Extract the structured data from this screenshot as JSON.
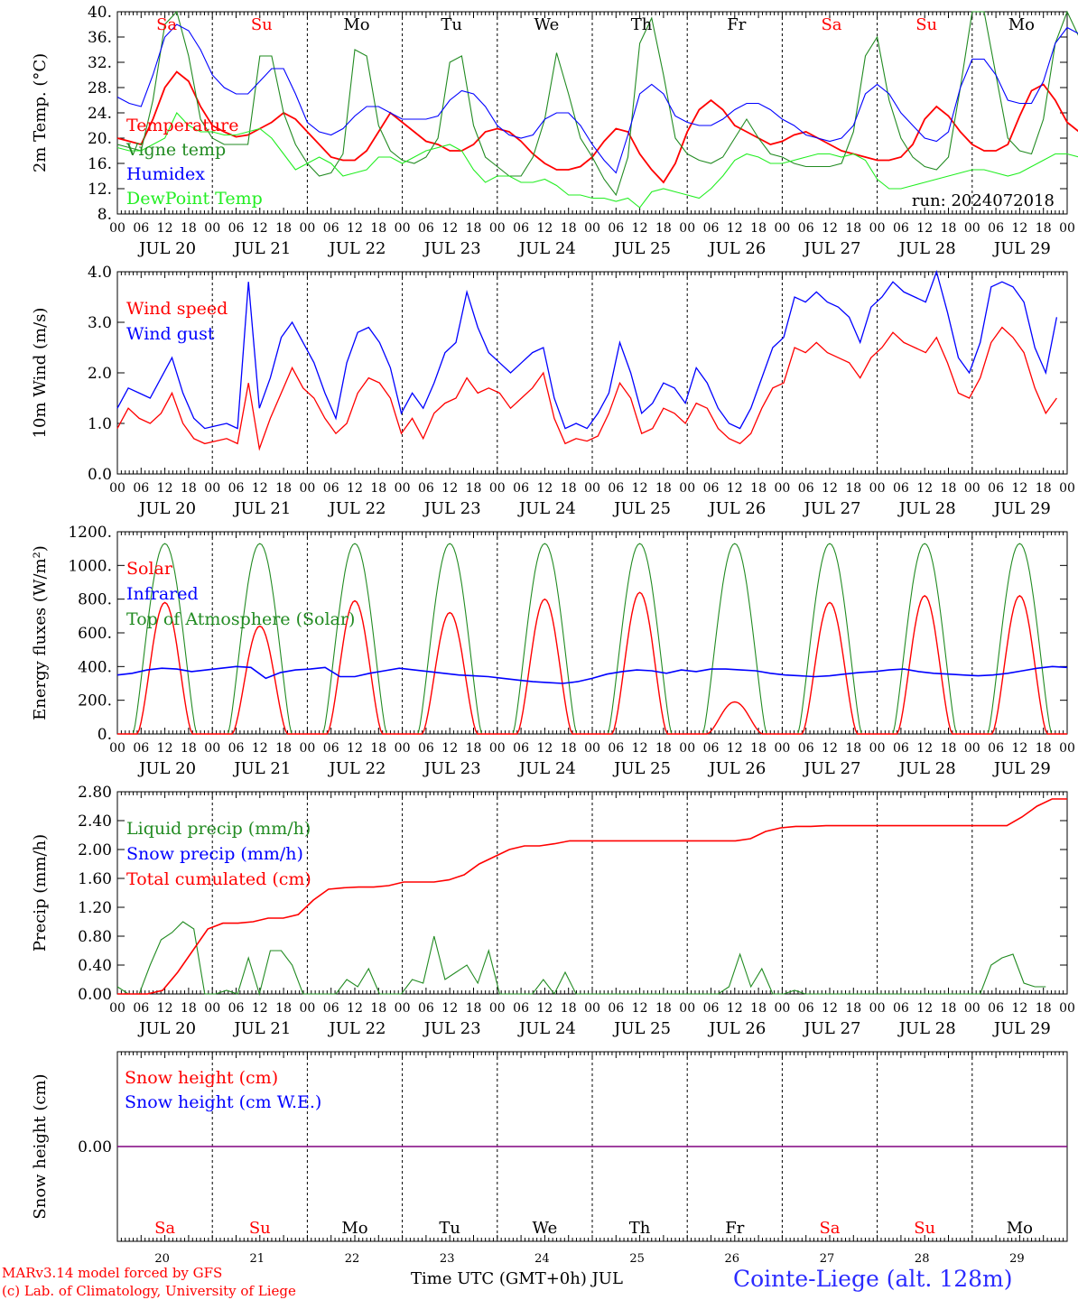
{
  "run_label": "run: 2024072018",
  "days": [
    "Sa",
    "Su",
    "Mo",
    "Tu",
    "We",
    "Th",
    "Fr",
    "Sa",
    "Su",
    "Mo"
  ],
  "day_colors": [
    "#ff0000",
    "#ff0000",
    "#000000",
    "#000000",
    "#000000",
    "#000000",
    "#000000",
    "#ff0000",
    "#ff0000",
    "#000000"
  ],
  "date_labels": [
    "JUL 20",
    "JUL 21",
    "JUL 22",
    "JUL 23",
    "JUL 24",
    "JUL 25",
    "JUL 26",
    "JUL 27",
    "JUL 28",
    "JUL 29"
  ],
  "day_numbers": [
    "20",
    "21",
    "22",
    "23",
    "24",
    "25",
    "26",
    "27",
    "28",
    "29"
  ],
  "hour_ticks": [
    "00",
    "06",
    "12",
    "18"
  ],
  "footer": {
    "model": "MARv3.14 model forced by GFS",
    "lab": "(c) Lab. of Climatology, University of Liege",
    "time_axis": "Time UTC (GMT+0h) JUL",
    "station": "Cointe-Liege (alt. 128m)"
  },
  "chart_data": [
    {
      "type": "line",
      "ylabel": "2m Temp. (°C)",
      "ylim": [
        8,
        40
      ],
      "yticks": [
        "40.",
        "36.",
        "32.",
        "28.",
        "24.",
        "20.",
        "16.",
        "12.",
        "8."
      ],
      "x": "hours since JUL 20 00 UTC, 3-hourly",
      "series": [
        {
          "name": "Temperature",
          "color": "#ff0000",
          "values": [
            20,
            19.5,
            19,
            23,
            28,
            30.5,
            29,
            25,
            22,
            21,
            20.2,
            20.5,
            21.5,
            22.5,
            24,
            23,
            21,
            19,
            17,
            16.5,
            16.5,
            18,
            21,
            24,
            22.5,
            21,
            19.5,
            19,
            18,
            18,
            19,
            21,
            21.5,
            21,
            19.5,
            17.5,
            16,
            15,
            15,
            15.5,
            17,
            19.5,
            21.5,
            21,
            17.5,
            15,
            13,
            16,
            21,
            24.5,
            26,
            24.5,
            22,
            21,
            20,
            19,
            19.5,
            20.5,
            21,
            20,
            19,
            18,
            17.5,
            17,
            16.5,
            16.5,
            17,
            19,
            23,
            25,
            23.5,
            21,
            19,
            18,
            18,
            19,
            23.5,
            27.5,
            28.5,
            26,
            22.5,
            21,
            20.5,
            22.5,
            27,
            31,
            32,
            29.5,
            25,
            23.5
          ]
        },
        {
          "name": "Vigne temp",
          "color": "#228b22",
          "values": [
            19,
            18.5,
            18,
            26,
            38,
            40,
            33,
            23,
            20,
            19,
            19,
            19,
            33,
            33,
            24,
            19,
            16,
            14,
            14.5,
            17.5,
            34,
            33,
            22,
            18,
            16.5,
            16,
            17,
            20,
            32,
            33,
            22,
            17,
            15.5,
            14,
            14,
            17,
            23,
            33.5,
            27,
            20,
            17,
            13.5,
            11,
            17,
            35,
            39,
            30,
            20,
            17.5,
            16.5,
            16,
            17,
            20,
            23,
            20,
            17.5,
            17,
            16,
            15.5,
            15.5,
            15.5,
            16,
            21,
            33,
            36,
            26,
            20,
            17,
            15.5,
            15,
            17,
            28,
            40,
            40,
            30,
            20,
            18,
            17.5,
            23,
            35,
            40,
            36,
            27,
            23,
            21.5,
            21
          ]
        },
        {
          "name": "Humidex",
          "color": "#0000ff",
          "values": [
            26.5,
            25.5,
            25,
            30,
            36,
            38,
            37,
            34,
            30,
            28,
            27,
            27,
            29,
            31,
            31,
            27,
            22.5,
            21,
            20.5,
            21.5,
            23.5,
            25,
            25,
            24,
            23,
            23,
            23,
            23.5,
            26,
            27.5,
            27,
            25,
            22,
            20.5,
            20,
            20.5,
            23,
            24,
            24,
            22,
            19,
            16.5,
            14.5,
            20.5,
            27,
            28.5,
            27,
            23.5,
            22.5,
            22,
            22,
            23,
            24.5,
            25.5,
            25.5,
            24.5,
            23,
            22,
            20.5,
            20,
            19.5,
            20,
            22,
            27,
            28.5,
            27,
            24,
            22,
            20,
            19.5,
            21,
            28,
            32.5,
            32.5,
            30,
            26,
            25.5,
            25.5,
            29,
            35,
            37.5,
            36.5,
            34,
            32,
            30.5,
            30
          ]
        },
        {
          "name": "DewPoint Temp",
          "color": "#22ee22",
          "values": [
            18.5,
            18,
            18,
            19,
            20,
            24,
            22,
            21,
            21,
            20.5,
            20.5,
            21,
            21.5,
            20,
            17.5,
            15,
            16,
            17,
            16,
            14,
            14.5,
            15,
            17,
            17,
            16,
            17,
            18,
            18.5,
            19,
            18,
            15,
            13,
            14,
            14,
            13,
            13,
            13.5,
            12.5,
            11,
            11,
            10.5,
            10.5,
            10,
            10.5,
            9,
            11.5,
            12,
            11.5,
            11,
            10.5,
            12,
            14,
            16.5,
            17.5,
            17,
            16,
            16,
            16.5,
            17,
            17.5,
            17.5,
            17,
            17.5,
            16.5,
            13.5,
            12,
            12,
            12.5,
            13,
            13.5,
            14,
            14.5,
            15,
            15,
            14.5,
            14,
            14.5,
            15.5,
            16.5,
            17.5,
            17.5,
            17,
            16.5,
            17.5,
            20.5,
            19
          ]
        }
      ]
    },
    {
      "type": "line",
      "ylabel": "10m Wind (m/s)",
      "ylim": [
        0,
        4
      ],
      "yticks": [
        "4.0",
        "3.0",
        "2.0",
        "1.0",
        "0.0"
      ],
      "x": "hours since JUL 20 00 UTC, 3-hourly",
      "series": [
        {
          "name": "Wind speed",
          "color": "#ff0000",
          "values": [
            0.9,
            1.3,
            1.1,
            1.0,
            1.2,
            1.6,
            1.0,
            0.7,
            0.6,
            0.65,
            0.7,
            0.6,
            1.8,
            0.5,
            1.1,
            1.6,
            2.1,
            1.7,
            1.5,
            1.1,
            0.8,
            1.0,
            1.6,
            1.9,
            1.8,
            1.5,
            0.8,
            1.1,
            0.7,
            1.2,
            1.4,
            1.5,
            1.9,
            1.6,
            1.7,
            1.6,
            1.3,
            1.5,
            1.7,
            2.0,
            1.1,
            0.6,
            0.7,
            0.65,
            0.75,
            1.2,
            1.8,
            1.5,
            0.8,
            0.9,
            1.3,
            1.2,
            1.0,
            1.4,
            1.3,
            0.9,
            0.7,
            0.6,
            0.8,
            1.3,
            1.7,
            1.8,
            2.5,
            2.4,
            2.6,
            2.4,
            2.3,
            2.2,
            1.9,
            2.3,
            2.5,
            2.8,
            2.6,
            2.5,
            2.4,
            2.7,
            2.2,
            1.6,
            1.5,
            1.9,
            2.6,
            2.9,
            2.7,
            2.4,
            1.7,
            1.2,
            1.5
          ]
        },
        {
          "name": "Wind gust",
          "color": "#0000ff",
          "values": [
            1.3,
            1.7,
            1.6,
            1.5,
            1.9,
            2.3,
            1.6,
            1.1,
            0.9,
            0.95,
            1.0,
            0.9,
            3.8,
            1.3,
            1.9,
            2.7,
            3.0,
            2.6,
            2.2,
            1.6,
            1.1,
            2.2,
            2.8,
            2.9,
            2.6,
            2.1,
            1.2,
            1.6,
            1.3,
            1.8,
            2.4,
            2.6,
            3.6,
            2.9,
            2.4,
            2.2,
            2.0,
            2.2,
            2.4,
            2.5,
            1.5,
            0.9,
            1.0,
            0.9,
            1.2,
            1.6,
            2.6,
            2.0,
            1.2,
            1.4,
            1.8,
            1.7,
            1.4,
            2.1,
            1.8,
            1.3,
            1.0,
            0.9,
            1.3,
            1.9,
            2.5,
            2.7,
            3.5,
            3.4,
            3.6,
            3.4,
            3.3,
            3.1,
            2.6,
            3.3,
            3.5,
            3.8,
            3.6,
            3.5,
            3.4,
            4.0,
            3.2,
            2.3,
            2.0,
            2.6,
            3.7,
            3.8,
            3.7,
            3.4,
            2.5,
            2.0,
            3.1
          ]
        }
      ]
    },
    {
      "type": "line",
      "ylabel": "Energy fluxes (W/m²)",
      "ylim": [
        0,
        1200
      ],
      "yticks": [
        "1200.",
        "1000.",
        "800.",
        "600.",
        "400.",
        "200.",
        "0."
      ],
      "x": "hours since JUL 20 00 UTC",
      "series": [
        {
          "name": "Solar",
          "color": "#ff0000",
          "day_peaks": [
            780,
            640,
            790,
            720,
            800,
            840,
            190,
            780,
            820,
            820
          ]
        },
        {
          "name": "Infrared",
          "color": "#0000ff",
          "values": [
            350,
            360,
            380,
            390,
            385,
            370,
            380,
            390,
            400,
            395,
            330,
            365,
            380,
            385,
            395,
            340,
            340,
            360,
            375,
            390,
            380,
            370,
            360,
            350,
            345,
            340,
            330,
            320,
            310,
            305,
            300,
            310,
            330,
            355,
            370,
            380,
            375,
            360,
            380,
            370,
            385,
            385,
            380,
            375,
            360,
            350,
            345,
            340,
            345,
            355,
            365,
            370,
            380,
            385,
            370,
            360,
            355,
            350,
            345,
            350,
            360,
            375,
            390,
            400,
            395
          ]
        },
        {
          "name": "Top of Atmosphere (Solar)",
          "color": "#228b22",
          "day_peak": 1130
        }
      ]
    },
    {
      "type": "line",
      "ylabel": "Precip (mm/h)",
      "ylim": [
        0,
        2.8
      ],
      "yticks": [
        "2.80",
        "2.40",
        "2.00",
        "1.60",
        "1.20",
        "0.80",
        "0.40",
        "0.00"
      ],
      "x": "hours since JUL 20 00 UTC, 3-hourly",
      "series": [
        {
          "name": "Liquid precip (mm/h)",
          "color": "#228b22",
          "values": [
            0.1,
            0,
            0,
            0.4,
            0.75,
            0.85,
            1.0,
            0.9,
            0,
            0,
            0.05,
            0,
            0.5,
            0,
            0.6,
            0.6,
            0.4,
            0,
            0,
            0,
            0,
            0.2,
            0.1,
            0.35,
            0,
            0,
            0,
            0.2,
            0.15,
            0.8,
            0.2,
            0.3,
            0.4,
            0.15,
            0.6,
            0,
            0,
            0,
            0,
            0.2,
            0,
            0.3,
            0,
            0,
            0,
            0,
            0,
            0,
            0,
            0,
            0,
            0,
            0,
            0,
            0,
            0,
            0.1,
            0.55,
            0.1,
            0.35,
            0,
            0,
            0.05,
            0,
            0,
            0,
            0,
            0,
            0,
            0,
            0,
            0,
            0,
            0,
            0,
            0,
            0,
            0,
            0,
            0,
            0.4,
            0.5,
            0.55,
            0.15,
            0.1,
            0.1
          ]
        },
        {
          "name": "Snow precip (mm/h)",
          "color": "#0000ff",
          "values": []
        },
        {
          "name": "Total cumulated (cm)",
          "color": "#ff0000",
          "values": [
            0,
            0,
            0,
            0.05,
            0.3,
            0.6,
            0.9,
            0.98,
            0.98,
            1.0,
            1.05,
            1.05,
            1.1,
            1.3,
            1.45,
            1.47,
            1.48,
            1.48,
            1.5,
            1.55,
            1.55,
            1.55,
            1.58,
            1.65,
            1.8,
            1.9,
            2.0,
            2.05,
            2.05,
            2.08,
            2.12,
            2.12,
            2.12,
            2.12,
            2.12,
            2.12,
            2.12,
            2.12,
            2.12,
            2.12,
            2.12,
            2.12,
            2.15,
            2.25,
            2.3,
            2.32,
            2.32,
            2.33,
            2.33,
            2.33,
            2.33,
            2.33,
            2.33,
            2.33,
            2.33,
            2.33,
            2.33,
            2.33,
            2.33,
            2.33,
            2.45,
            2.6,
            2.7,
            2.7
          ]
        }
      ]
    },
    {
      "type": "line",
      "ylabel": "Snow height (cm)",
      "yticks": [
        "0.00"
      ],
      "series": [
        {
          "name": "Snow height (cm)",
          "color": "#ff0000",
          "values": [
            0,
            0
          ]
        },
        {
          "name": "Snow height (cm W.E.)",
          "color": "#0000ff",
          "values": [
            0,
            0
          ]
        }
      ]
    }
  ]
}
